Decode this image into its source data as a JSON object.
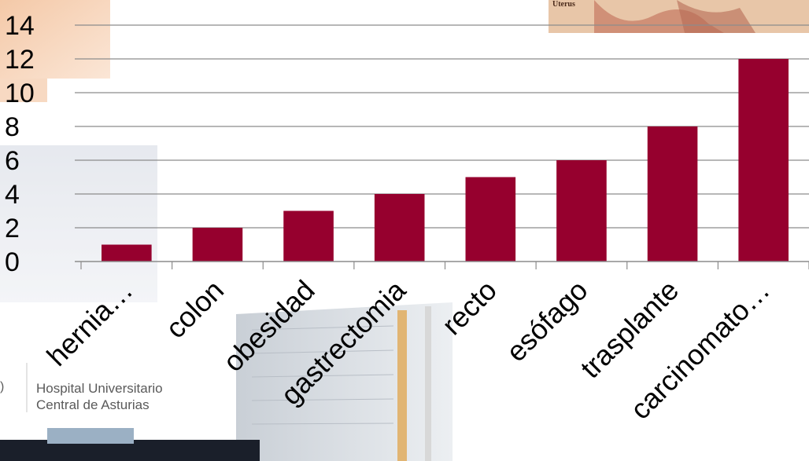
{
  "decor": {
    "hospital_line1": "Hospital Universitario",
    "hospital_line2": "Central de Asturias",
    "inset_label": "Uterus"
  },
  "chart_data": {
    "type": "bar",
    "categories": [
      "hernia…",
      "colon",
      "obesidad",
      "gastrectomia",
      "recto",
      "esófago",
      "trasplante",
      "carcinomato…"
    ],
    "values": [
      1,
      2,
      3,
      4,
      5,
      6,
      8,
      12
    ],
    "title": "",
    "xlabel": "",
    "ylabel": "",
    "ylim": [
      0,
      14
    ],
    "yticks": [
      0,
      2,
      4,
      6,
      8,
      10,
      12,
      14
    ],
    "grid": true,
    "legend": "none",
    "bar_color": "#96002e"
  }
}
